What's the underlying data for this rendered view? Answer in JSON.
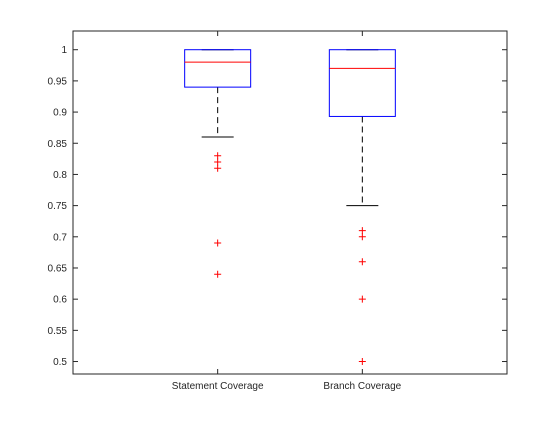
{
  "chart_data": {
    "type": "box",
    "title": "",
    "xlabel": "",
    "ylabel": "",
    "ylim": [
      0.48,
      1.03
    ],
    "yticks": [
      0.5,
      0.55,
      0.6,
      0.65,
      0.7,
      0.75,
      0.8,
      0.85,
      0.9,
      0.95,
      1
    ],
    "ytick_labels": [
      "0.5",
      "0.55",
      "0.6",
      "0.65",
      "0.7",
      "0.75",
      "0.8",
      "0.85",
      "0.9",
      "0.95",
      "1"
    ],
    "grid": false,
    "categories": [
      "Statement Coverage",
      "Branch Coverage"
    ],
    "boxes": [
      {
        "name": "Statement Coverage",
        "whisker_low": 0.86,
        "q1": 0.94,
        "median": 0.98,
        "q3": 1.0,
        "whisker_high": 1.0,
        "outliers": [
          0.83,
          0.82,
          0.81,
          0.69,
          0.64
        ]
      },
      {
        "name": "Branch Coverage",
        "whisker_low": 0.75,
        "q1": 0.893,
        "median": 0.97,
        "q3": 1.0,
        "whisker_high": 1.0,
        "outliers": [
          0.71,
          0.7,
          0.66,
          0.6,
          0.5
        ]
      }
    ],
    "colors": {
      "box": "#0000ff",
      "median": "#ff0000",
      "whisker": "#000000",
      "outlier": "#ff0000",
      "axis": "#262626"
    }
  }
}
